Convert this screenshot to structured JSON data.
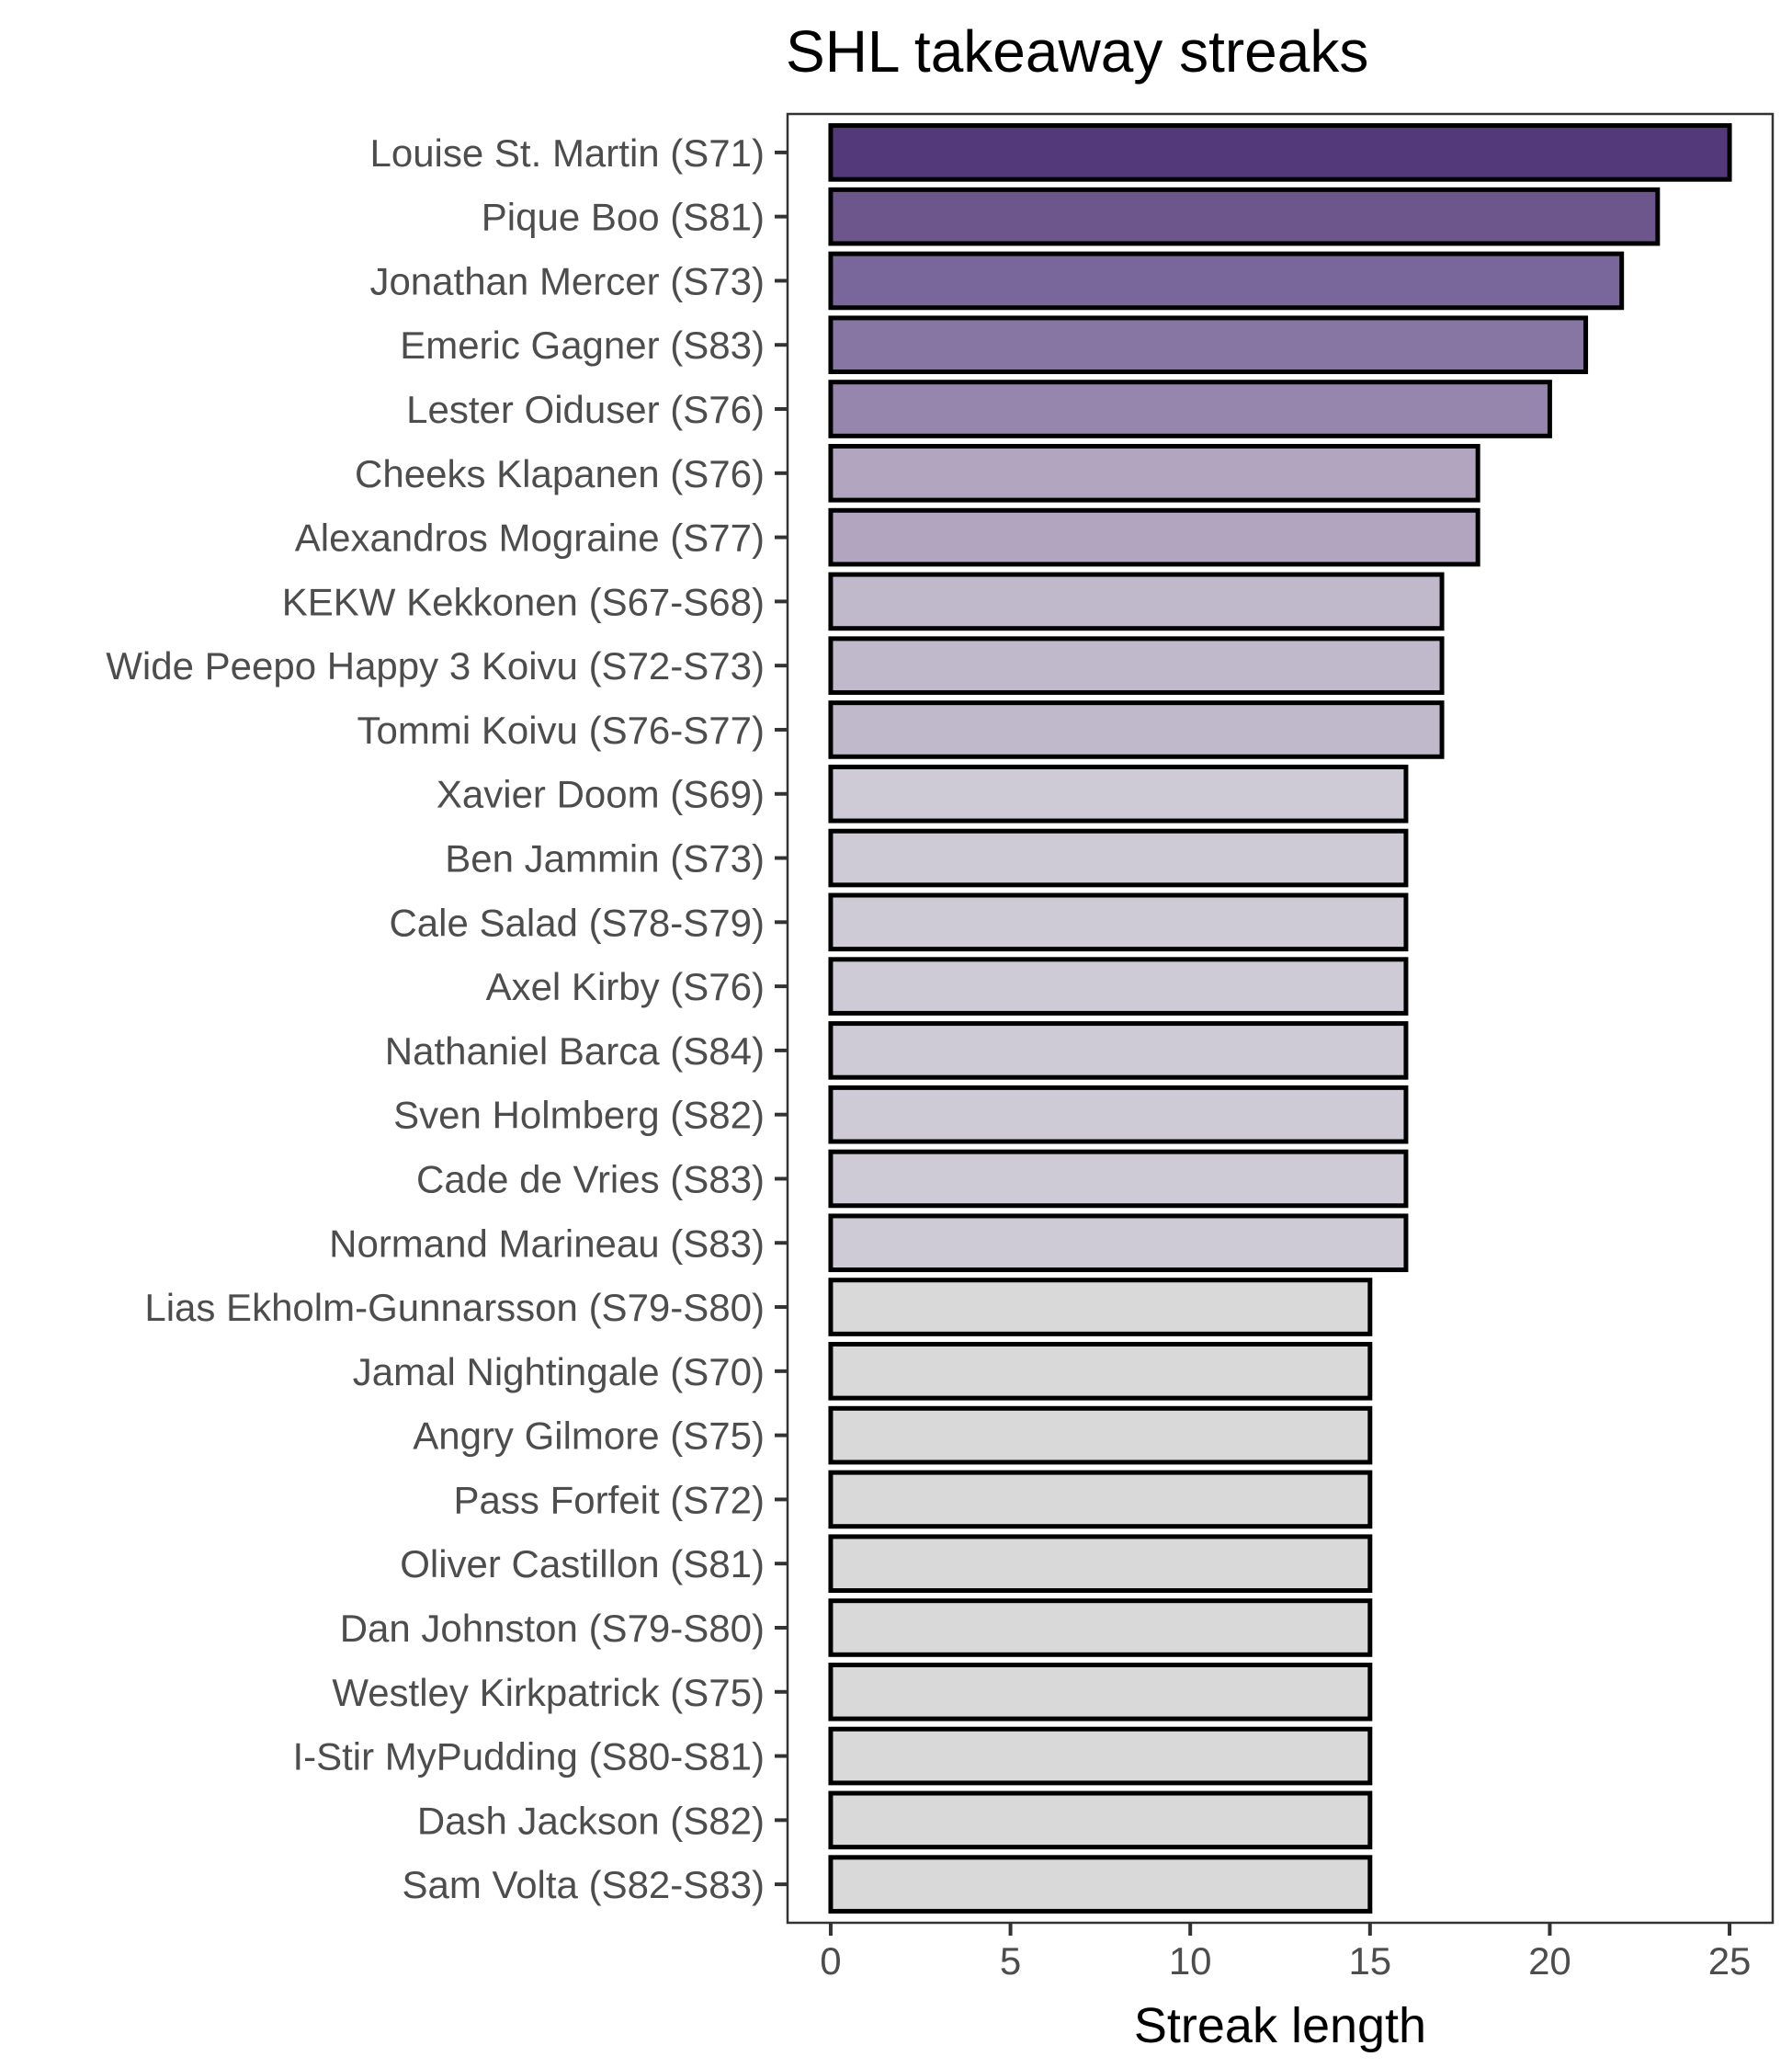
{
  "chart_data": {
    "type": "bar",
    "orientation": "horizontal",
    "title": "SHL takeaway streaks",
    "xlabel": "Streak length",
    "ylabel": "",
    "xlim": [
      -1.2,
      26.2
    ],
    "xticks": [
      0,
      5,
      10,
      15,
      20,
      25
    ],
    "grid": false,
    "categories": [
      "Louise St. Martin (S71)",
      "Pique Boo (S81)",
      "Jonathan Mercer (S73)",
      "Emeric Gagner (S83)",
      "Lester Oiduser (S76)",
      "Cheeks Klapanen (S76)",
      "Alexandros Mograine (S77)",
      "KEKW Kekkonen (S67-S68)",
      "Wide Peepo Happy 3 Koivu (S72-S73)",
      "Tommi Koivu (S76-S77)",
      "Xavier Doom (S69)",
      "Ben Jammin (S73)",
      "Cale Salad (S78-S79)",
      "Axel Kirby (S76)",
      "Nathaniel Barca (S84)",
      "Sven Holmberg (S82)",
      "Cade de Vries (S83)",
      "Normand Marineau (S83)",
      "Lias Ekholm-Gunnarsson (S79-S80)",
      "Jamal Nightingale (S70)",
      "Angry Gilmore (S75)",
      "Pass Forfeit (S72)",
      "Oliver Castillon (S81)",
      "Dan Johnston (S79-S80)",
      "Westley Kirkpatrick (S75)",
      "I-Stir MyPudding (S80-S81)",
      "Dash Jackson (S82)",
      "Sam Volta (S82-S83)"
    ],
    "values": [
      25,
      23,
      22,
      21,
      20,
      18,
      18,
      17,
      17,
      17,
      16,
      16,
      16,
      16,
      16,
      16,
      16,
      16,
      15,
      15,
      15,
      15,
      15,
      15,
      15,
      15,
      15,
      15
    ],
    "colors": {
      "25": "#54397a",
      "23": "#6c568c",
      "22": "#79669a",
      "21": "#8776a3",
      "20": "#9686ad",
      "18": "#b2a5bf",
      "17": "#c0b9cc",
      "16": "#cecbd6",
      "15": "#d9d9d9"
    }
  }
}
